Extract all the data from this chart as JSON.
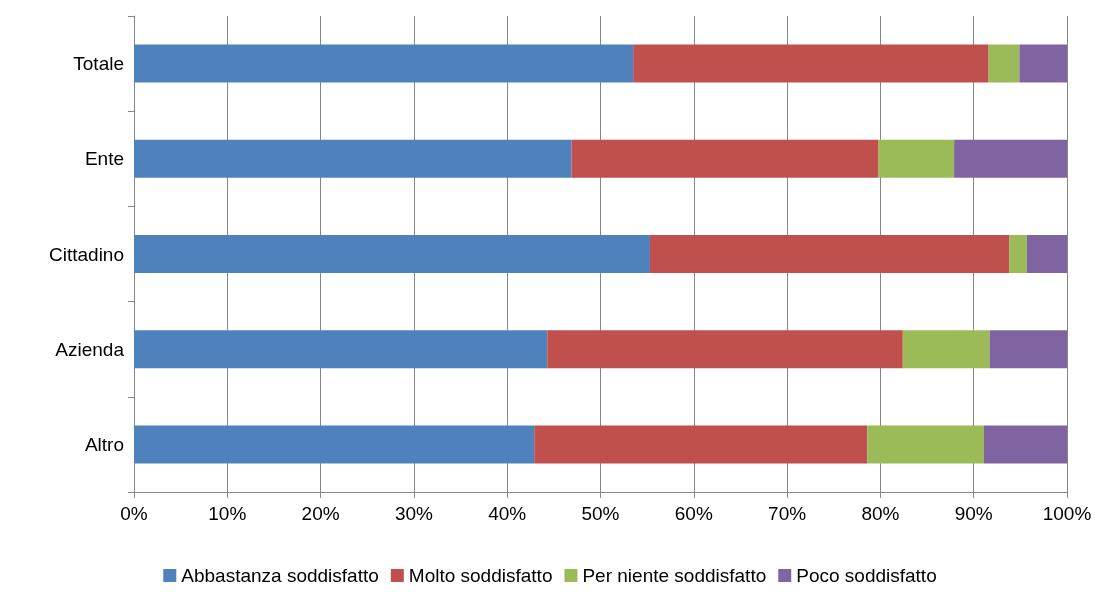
{
  "chart_data": {
    "type": "bar",
    "orientation": "horizontal",
    "stacked": true,
    "categories": [
      "Totale",
      "Ente",
      "Cittadino",
      "Azienda",
      "Altro"
    ],
    "series": [
      {
        "name": "Abbastanza soddisfatto",
        "color": "#4f81bd",
        "values": [
          53.5,
          46.9,
          55.3,
          44.3,
          42.9
        ]
      },
      {
        "name": "Molto soddisfatto",
        "color": "#c0504d",
        "values": [
          38.1,
          32.9,
          38.5,
          38.1,
          35.7
        ]
      },
      {
        "name": "Per niente soddisfatto",
        "color": "#9bbb59",
        "values": [
          3.3,
          8.1,
          1.9,
          9.3,
          12.5
        ]
      },
      {
        "name": "Poco soddisfatto",
        "color": "#8064a2",
        "values": [
          5.1,
          12.1,
          4.3,
          8.3,
          8.9
        ]
      }
    ],
    "xlim": [
      0,
      100
    ],
    "xticks": [
      {
        "value": 0,
        "label": "0%"
      },
      {
        "value": 10,
        "label": "10%"
      },
      {
        "value": 20,
        "label": "20%"
      },
      {
        "value": 30,
        "label": "30%"
      },
      {
        "value": 40,
        "label": "40%"
      },
      {
        "value": 50,
        "label": "50%"
      },
      {
        "value": 60,
        "label": "60%"
      },
      {
        "value": 70,
        "label": "70%"
      },
      {
        "value": 80,
        "label": "80%"
      },
      {
        "value": 90,
        "label": "90%"
      },
      {
        "value": 100,
        "label": "100%"
      }
    ],
    "grid": "x",
    "legend": "bottom"
  }
}
